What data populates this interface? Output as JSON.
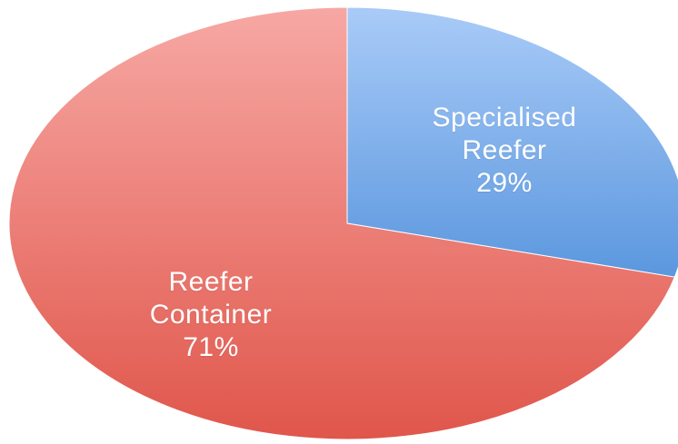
{
  "chart_data": {
    "type": "pie",
    "slices": [
      {
        "label_lines": [
          "Specialised",
          "Reefer"
        ],
        "pct_label": "29%",
        "value": 29,
        "color_light": "#a9cbf8",
        "color_dark": "#5b97de"
      },
      {
        "label_lines": [
          "Reefer",
          "Container"
        ],
        "pct_label": "71%",
        "value": 71,
        "color_light": "#f7a8a4",
        "color_dark": "#e0564b"
      }
    ],
    "start_angle_deg": 0,
    "direction": "clockwise",
    "legend": "none"
  }
}
